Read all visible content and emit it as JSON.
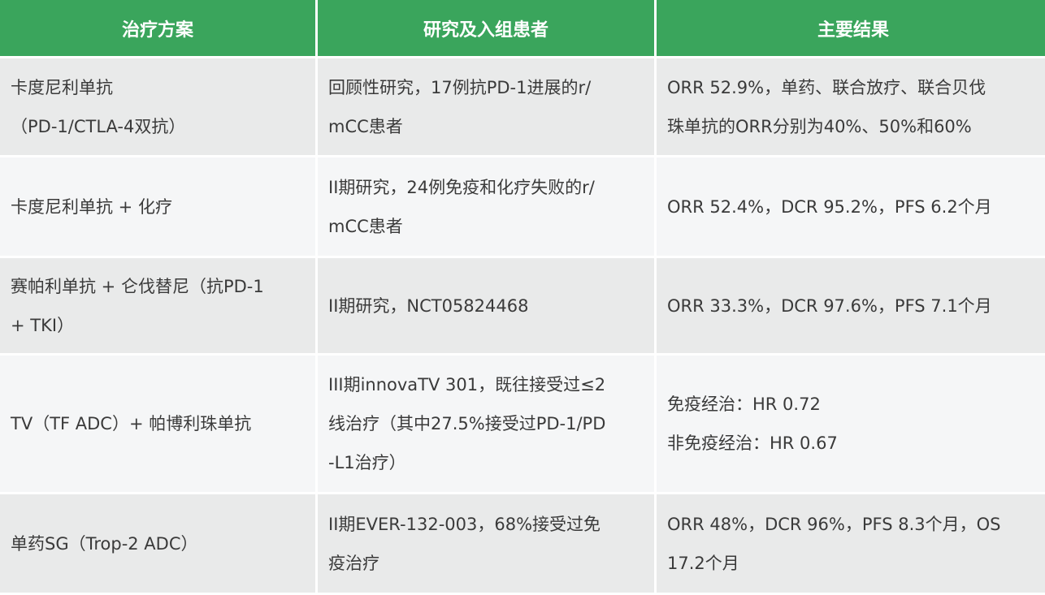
{
  "headers": [
    "治疗方案",
    "研究及入组患者",
    "主要结果"
  ],
  "colors": {
    "header_bg": "#3aa55c",
    "row_odd": "#e9eaea",
    "row_even": "#f5f6f7"
  },
  "rows": [
    {
      "treatment": [
        "卡度尼利单抗",
        "（PD-1/CTLA-4双抗）"
      ],
      "study": [
        "回顾性研究，17例抗PD-1进展的r/",
        "mCC患者"
      ],
      "result": [
        "ORR 52.9%，单药、联合放疗、联合贝伐",
        "珠单抗的ORR分别为40%、50%和60%"
      ]
    },
    {
      "treatment": [
        "卡度尼利单抗 + 化疗"
      ],
      "study": [
        "II期研究，24例免疫和化疗失败的r/",
        "mCC患者"
      ],
      "result": [
        "ORR 52.4%，DCR 95.2%，PFS 6.2个月"
      ]
    },
    {
      "treatment": [
        "赛帕利单抗 + 仑伐替尼（抗PD-1",
        "+ TKI）"
      ],
      "study": [
        "II期研究，NCT05824468"
      ],
      "result": [
        "ORR 33.3%，DCR 97.6%，PFS 7.1个月"
      ]
    },
    {
      "treatment": [
        "TV（TF ADC）+ 帕博利珠单抗"
      ],
      "study": [
        "III期innovaTV 301，既往接受过≤2",
        "线治疗（其中27.5%接受过PD-1/PD",
        "-L1治疗）"
      ],
      "result": [
        "免疫经治：HR 0.72",
        "非免疫经治：HR 0.67"
      ]
    },
    {
      "treatment": [
        "单药SG（Trop-2 ADC）"
      ],
      "study": [
        "II期EVER-132-003，68%接受过免",
        "疫治疗"
      ],
      "result": [
        "ORR 48%，DCR 96%，PFS 8.3个月，OS",
        "17.2个月"
      ]
    }
  ]
}
